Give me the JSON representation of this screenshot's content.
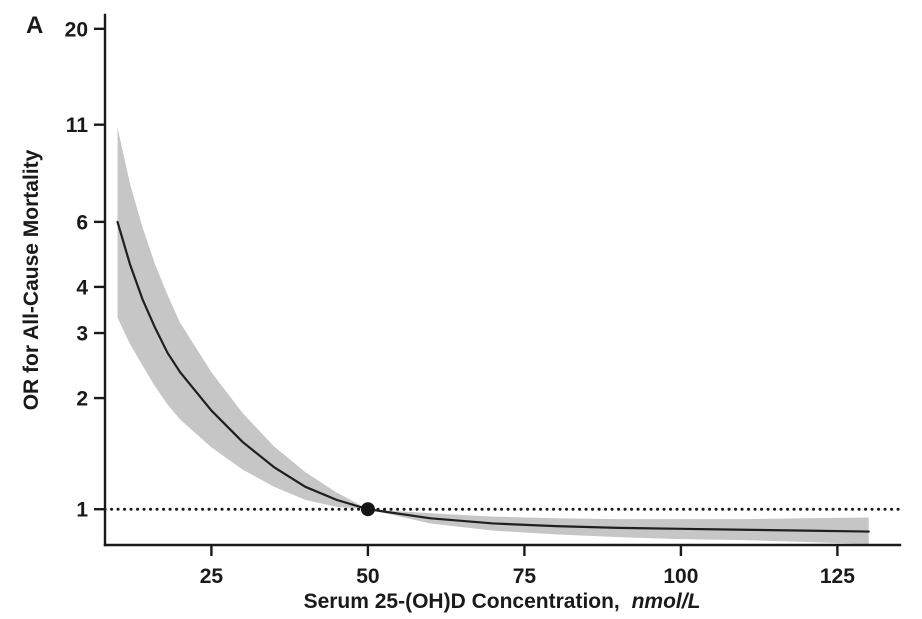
{
  "chart_data": {
    "type": "line",
    "panel_label": "A",
    "title": "",
    "xlabel": "Serum 25-(OH)D Concentration,",
    "xlabel_unit": "nmol/L",
    "ylabel": "OR for All-Cause Mortality",
    "x_ticks": [
      25,
      50,
      75,
      100,
      125
    ],
    "y_ticks": [
      1,
      2,
      3,
      4,
      6,
      11,
      20
    ],
    "xlim": [
      8,
      135
    ],
    "ylim": [
      0.8,
      21.8
    ],
    "y_scale": "log",
    "grid": "off",
    "legend": "none",
    "reference_line_y": 1,
    "reference_point": {
      "x": 50,
      "y": 1
    },
    "band_color": "#c6c6c6",
    "line_color": "#1f1f1f",
    "x": [
      10,
      12,
      14,
      16,
      18,
      20,
      25,
      30,
      35,
      40,
      45,
      50,
      60,
      70,
      80,
      90,
      100,
      110,
      120,
      130
    ],
    "series": [
      {
        "name": "OR",
        "values": [
          6.0,
          4.6,
          3.7,
          3.1,
          2.65,
          2.35,
          1.85,
          1.52,
          1.3,
          1.15,
          1.06,
          1.0,
          0.945,
          0.915,
          0.9,
          0.89,
          0.885,
          0.88,
          0.875,
          0.87
        ]
      },
      {
        "name": "upper_ci",
        "values": [
          10.8,
          7.6,
          5.8,
          4.6,
          3.8,
          3.2,
          2.35,
          1.82,
          1.48,
          1.26,
          1.11,
          1.0,
          0.975,
          0.955,
          0.945,
          0.94,
          0.94,
          0.94,
          0.945,
          0.95
        ]
      },
      {
        "name": "lower_ci",
        "values": [
          3.3,
          2.8,
          2.45,
          2.15,
          1.92,
          1.75,
          1.47,
          1.28,
          1.15,
          1.06,
          1.015,
          1.0,
          0.915,
          0.875,
          0.855,
          0.84,
          0.83,
          0.825,
          0.815,
          0.805
        ]
      }
    ]
  }
}
